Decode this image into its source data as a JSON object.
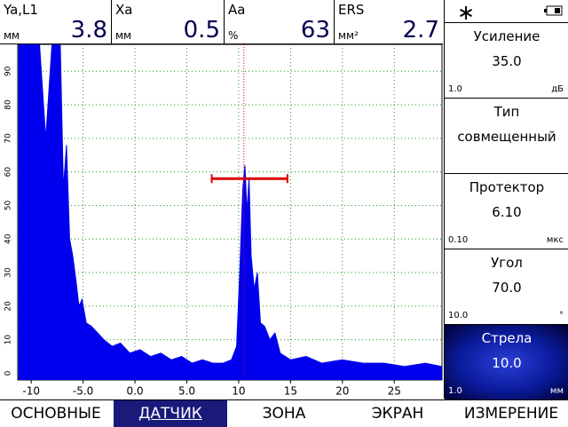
{
  "header": {
    "cells": [
      {
        "label": "Ya,L1",
        "unit": "мм",
        "value": "3.8"
      },
      {
        "label": "Xa",
        "unit": "мм",
        "value": "0.5"
      },
      {
        "label": "Aa",
        "unit": "%",
        "value": "63"
      },
      {
        "label": "ERS",
        "unit": "мм²",
        "value": "2.7"
      }
    ]
  },
  "plot": {
    "xlim": [
      -11.3,
      29.6
    ],
    "xticks": [
      -10,
      {
        "value": -5,
        "label": "-5.0"
      },
      {
        "value": 0,
        "label": "0.0"
      },
      {
        "value": 5,
        "label": "5.0"
      },
      10,
      15,
      20,
      25
    ],
    "ylim": [
      -2,
      98
    ],
    "yticks": [
      0,
      10,
      20,
      30,
      40,
      50,
      60,
      70,
      80,
      90
    ],
    "grid": true,
    "signal": {
      "color": "#0000ee",
      "x": [
        -11.2,
        -10.5,
        -9.8,
        -9.2,
        -8.6,
        -8.0,
        -7.6,
        -7.2,
        -6.9,
        -6.6,
        -6.3,
        -6.0,
        -5.7,
        -5.4,
        -5.1,
        -4.7,
        -4.2,
        -3.6,
        -3.0,
        -2.2,
        -1.4,
        -0.5,
        0.5,
        1.5,
        2.5,
        3.5,
        4.5,
        5.5,
        6.5,
        7.5,
        8.5,
        9.3,
        9.8,
        10.1,
        10.4,
        10.6,
        10.8,
        11.0,
        11.2,
        11.5,
        11.8,
        12.1,
        12.5,
        13.0,
        13.5,
        14.0,
        15.0,
        16.5,
        18.0,
        20.0,
        22.0,
        24.0,
        26.0,
        28.0,
        29.6
      ],
      "values": [
        98,
        98,
        98,
        98,
        70,
        98,
        98,
        98,
        55,
        68,
        40,
        35,
        28,
        20,
        22,
        15,
        14,
        12,
        10,
        8,
        9,
        6,
        7,
        5,
        6,
        4,
        5,
        3,
        4,
        3,
        3,
        4,
        8,
        30,
        55,
        62,
        48,
        58,
        35,
        25,
        30,
        15,
        14,
        10,
        12,
        6,
        4,
        5,
        3,
        4,
        3,
        3,
        2,
        3,
        2
      ]
    },
    "gate": {
      "start": 7.4,
      "end": 14.7,
      "level": 58,
      "color": "#dd0000"
    },
    "marker": 10.5
  },
  "panel": {
    "items": [
      {
        "title": "Усиление",
        "value": "35.0",
        "step": "1.0",
        "unit": "дБ"
      },
      {
        "title": "Тип",
        "value": "совмещенный"
      },
      {
        "title": "Протектор",
        "value": "6.10",
        "step": "0.10",
        "unit": "мкс"
      },
      {
        "title": "Угол",
        "value": "70.0",
        "step": "10.0",
        "unit": "°"
      },
      {
        "title": "Стрела",
        "value": "10.0",
        "step": "1.0",
        "unit": "мм"
      }
    ]
  },
  "menu": {
    "items": [
      "ОСНОВНЫЕ",
      "ДАТЧИК",
      "ЗОНА",
      "ЭКРАН",
      "ИЗМЕРЕНИЕ"
    ]
  }
}
